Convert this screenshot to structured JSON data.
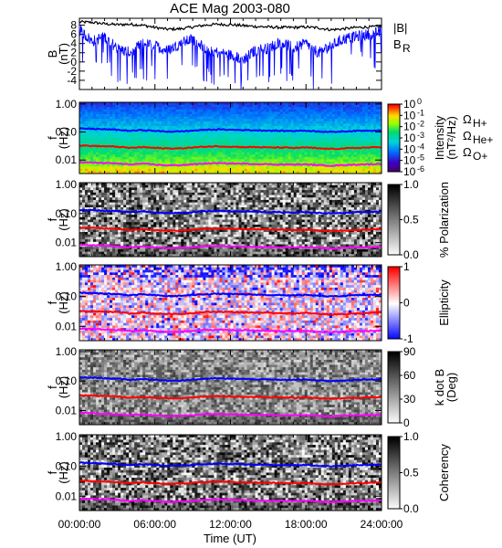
{
  "chart_data": {
    "type": "heatmap",
    "title": "ACE Mag 2003-080",
    "xlabel": "Time (UT)",
    "x_ticks": [
      "00:00:00",
      "06:00:00",
      "12:00:00",
      "18:00:00",
      "24:00:00"
    ],
    "xlim_hours": [
      0,
      24
    ],
    "colors": {
      "blue": "#0000ff",
      "red": "#ff0000",
      "magenta": "#ff00ff",
      "black": "#000000"
    },
    "field_panel": {
      "type": "line",
      "ylabel_top": "B",
      "ylabel_bottom": "(nT)",
      "yticks": [
        "8",
        "6",
        "4",
        "2",
        "0",
        "-2",
        "-4"
      ],
      "ylim": [
        -6,
        9.5
      ],
      "legend": [
        "|B|",
        "B"
      ],
      "legend_sub": "R",
      "series": [
        {
          "name": "|B|",
          "color": "#000000",
          "x": [
            0,
            1,
            2,
            3,
            4,
            5,
            6,
            7,
            8,
            9,
            10,
            11,
            12,
            13,
            14,
            15,
            16,
            17,
            18,
            19,
            20,
            21,
            22,
            23,
            24
          ],
          "y": [
            8.7,
            8.6,
            8.3,
            8.1,
            8.2,
            8.0,
            7.5,
            7.1,
            7.2,
            7.6,
            8.0,
            8.2,
            8.1,
            7.9,
            7.7,
            7.6,
            7.5,
            7.5,
            7.6,
            7.4,
            7.0,
            7.2,
            7.5,
            7.6,
            7.7
          ]
        },
        {
          "name": "B",
          "color": "#0000ff",
          "x": [
            0,
            1,
            2,
            3,
            4,
            5,
            6,
            7,
            8,
            9,
            10,
            11,
            12,
            13,
            14,
            15,
            16,
            17,
            18,
            19,
            20,
            21,
            22,
            23,
            24
          ],
          "y": [
            7.0,
            4.5,
            5.5,
            3.0,
            2.0,
            4.0,
            3.5,
            2.5,
            4.0,
            5.0,
            3.0,
            2.0,
            1.5,
            0.5,
            2.5,
            3.0,
            4.5,
            3.0,
            4.0,
            2.0,
            3.5,
            5.0,
            5.5,
            6.0,
            6.5
          ]
        }
      ]
    },
    "spectrogram_panels": [
      {
        "ylabel_top": "f",
        "ylabel_bottom": "(Hz)",
        "yticks": [
          "1.00",
          "0.10",
          "0.01"
        ],
        "ylim_hz": [
          0.0033,
          1.15
        ],
        "colorbar_ticks": [
          "10",
          "10",
          "10",
          "10",
          "10",
          "10",
          "10"
        ],
        "colorbar_exponents": [
          "0",
          "-1",
          "-2",
          "-3",
          "-4",
          "-5",
          "-6"
        ],
        "colorbar_label": "Intensity",
        "colorbar_label2": "(nT²/Hz)",
        "colormap": "rainbow",
        "gyrofrequency_legend": [
          {
            "symbol": "Ω",
            "subscript": "H+",
            "color": "#0000ff"
          },
          {
            "symbol": "Ω",
            "subscript": "He+",
            "color": "#ff0000"
          },
          {
            "symbol": "Ω",
            "subscript": "O+",
            "color": "#ff00ff"
          }
        ]
      },
      {
        "ylabel_top": "f",
        "ylabel_bottom": "(Hz)",
        "yticks": [
          "1.00",
          "0.10",
          "0.01"
        ],
        "ylim_hz": [
          0.0033,
          1.15
        ],
        "colorbar_ticks": [
          "1.0",
          "0.5",
          "0.0"
        ],
        "colorbar_label": "% Polarization",
        "colormap": "gray"
      },
      {
        "ylabel_top": "f",
        "ylabel_bottom": "(Hz)",
        "yticks": [
          "1.00",
          "0.10",
          "0.01"
        ],
        "ylim_hz": [
          0.0033,
          1.15
        ],
        "colorbar_ticks": [
          "1",
          "0",
          "-1"
        ],
        "colorbar_label": "Ellipticity",
        "colormap": "bluewhitered"
      },
      {
        "ylabel_top": "f",
        "ylabel_bottom": "(Hz)",
        "yticks": [
          "1.00",
          "0.10",
          "0.01"
        ],
        "ylim_hz": [
          0.0033,
          1.15
        ],
        "colorbar_ticks": [
          "90",
          "60",
          "30",
          "0"
        ],
        "colorbar_label": "k dot B",
        "colorbar_label2": "(Deg)",
        "colormap": "gray"
      },
      {
        "ylabel_top": "f",
        "ylabel_bottom": "(Hz)",
        "yticks": [
          "1.00",
          "0.10",
          "0.01"
        ],
        "ylim_hz": [
          0.0033,
          1.15
        ],
        "colorbar_ticks": [
          "1.0",
          "0.5",
          "0.0"
        ],
        "colorbar_label": "Coherency",
        "colormap": "gray"
      }
    ],
    "gyrofrequency_lines": {
      "x": [
        0,
        1,
        2,
        3,
        4,
        5,
        6,
        7,
        8,
        9,
        10,
        11,
        12,
        13,
        14,
        15,
        16,
        17,
        18,
        19,
        20,
        21,
        22,
        23,
        24
      ],
      "H+": [
        0.133,
        0.13,
        0.125,
        0.12,
        0.11,
        0.118,
        0.11,
        0.103,
        0.105,
        0.112,
        0.12,
        0.123,
        0.12,
        0.118,
        0.115,
        0.113,
        0.11,
        0.11,
        0.112,
        0.105,
        0.1,
        0.105,
        0.11,
        0.113,
        0.115
      ],
      "He+": [
        0.033,
        0.032,
        0.031,
        0.03,
        0.027,
        0.029,
        0.027,
        0.026,
        0.026,
        0.028,
        0.03,
        0.031,
        0.03,
        0.029,
        0.029,
        0.028,
        0.028,
        0.027,
        0.028,
        0.026,
        0.025,
        0.026,
        0.027,
        0.028,
        0.029
      ],
      "O+": [
        0.0083,
        0.0081,
        0.0078,
        0.0075,
        0.0069,
        0.0074,
        0.0069,
        0.0064,
        0.0066,
        0.007,
        0.0075,
        0.0077,
        0.0075,
        0.0074,
        0.0072,
        0.0071,
        0.0069,
        0.0069,
        0.007,
        0.0066,
        0.0063,
        0.0066,
        0.0069,
        0.0071,
        0.0072
      ]
    }
  }
}
